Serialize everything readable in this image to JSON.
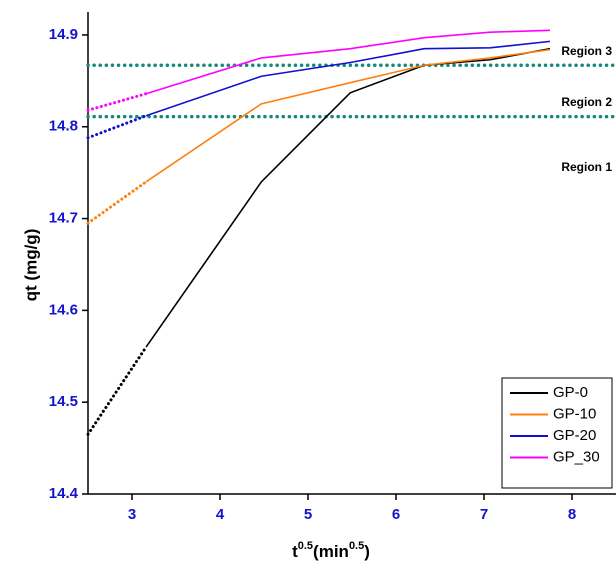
{
  "chart_data": {
    "type": "line",
    "y_label": "qt (mg/g)",
    "x_label": {
      "base": "t",
      "sup1": "0.5",
      "mid": "(min",
      "sup2": "0.5",
      "end": ")"
    },
    "xlim": [
      2.5,
      8.5
    ],
    "xticks": [
      3,
      4,
      5,
      6,
      7,
      8
    ],
    "ylim": [
      14.4,
      14.925
    ],
    "yticks": [
      14.4,
      14.5,
      14.6,
      14.7,
      14.8,
      14.9
    ],
    "x": [
      3.16,
      4.47,
      5.48,
      6.32,
      7.07,
      7.75
    ],
    "series": [
      {
        "name": "GP-0",
        "color": "#000000",
        "values": [
          14.56,
          14.74,
          14.837,
          14.867,
          14.873,
          14.885
        ],
        "extrapolated": {
          "x": [
            2.5,
            3.16
          ],
          "values": [
            14.465,
            14.56
          ]
        }
      },
      {
        "name": "GP-10",
        "color": "#ff7f0e",
        "values": [
          14.74,
          14.825,
          14.848,
          14.867,
          14.875,
          14.884
        ],
        "extrapolated": {
          "x": [
            2.5,
            3.16
          ],
          "values": [
            14.695,
            14.74
          ]
        }
      },
      {
        "name": "GP-20",
        "color": "#1010d0",
        "values": [
          14.812,
          14.855,
          14.87,
          14.885,
          14.886,
          14.893
        ],
        "extrapolated": {
          "x": [
            2.5,
            3.16
          ],
          "values": [
            14.788,
            14.812
          ]
        }
      },
      {
        "name": "GP_30",
        "color": "#ff00ff",
        "values": [
          14.836,
          14.875,
          14.885,
          14.897,
          14.903,
          14.905
        ],
        "extrapolated": {
          "x": [
            2.5,
            3.16
          ],
          "values": [
            14.818,
            14.836
          ]
        }
      }
    ],
    "reference_lines": {
      "color": "#138a7a",
      "values": [
        14.867,
        14.811
      ]
    },
    "annotations": [
      "Region 3",
      "Region 2",
      "Region 1"
    ],
    "legend": "lower right"
  }
}
